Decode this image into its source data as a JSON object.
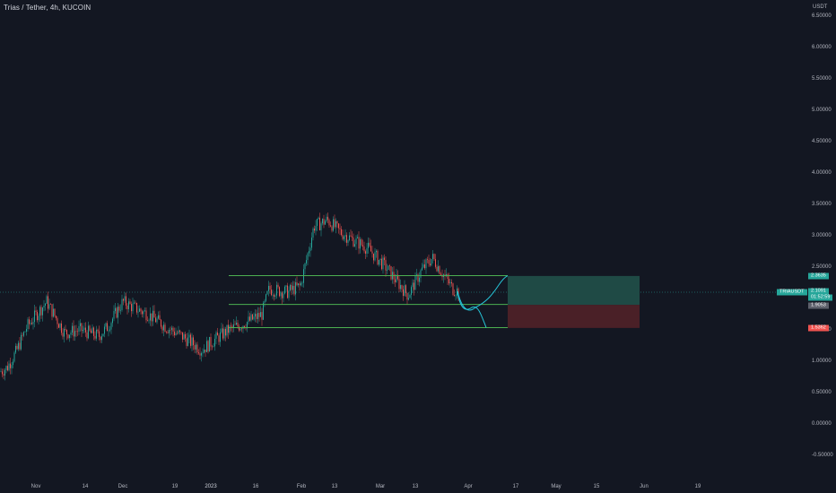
{
  "header": {
    "symbol_title": "Trias / Tether, 4h, KUCOIN"
  },
  "price_axis": {
    "currency": "USDT",
    "ticks": [
      "6.50000",
      "6.00000",
      "5.50000",
      "5.00000",
      "4.50000",
      "4.00000",
      "3.50000",
      "3.00000",
      "2.50000",
      "1.50000",
      "1.00000",
      "0.50000",
      "0.00000",
      "-0.50000"
    ]
  },
  "time_axis": {
    "ticks": [
      "Nov",
      "14",
      "Dec",
      "19",
      "2023",
      "16",
      "Feb",
      "13",
      "Mar",
      "13",
      "Apr",
      "17",
      "May",
      "15",
      "Jun",
      "19"
    ]
  },
  "price_tags": {
    "target": "2.3635",
    "last_price": "2.1091",
    "countdown": "01:52:59",
    "entry": "1.9053",
    "stop": "1.5362",
    "symbol": "TRIAUSDT"
  },
  "colors": {
    "background": "#131722",
    "bull": "#26a69a",
    "bear": "#ef5350",
    "level_line": "#4caf50",
    "projection": "#26c6da",
    "target_zone": "#1f4a45",
    "stop_zone": "#4a2027"
  },
  "chart_data": {
    "type": "candlestick",
    "timeframe": "4h",
    "y_axis": {
      "min": -0.5,
      "max": 6.5,
      "unit": "USDT",
      "grid": false
    },
    "path_points": [
      [
        "Nov",
        0.83
      ],
      [
        "Nov",
        0.9
      ],
      [
        "Nov",
        1.15
      ],
      [
        "Nov",
        1.55
      ],
      [
        "Nov",
        1.95
      ],
      [
        "14",
        1.7
      ],
      [
        "14",
        1.45
      ],
      [
        "14",
        1.5
      ],
      [
        "14",
        1.4
      ],
      [
        "Dec",
        1.55
      ],
      [
        "Dec",
        1.95
      ],
      [
        "Dec",
        1.85
      ],
      [
        "Dec",
        1.75
      ],
      [
        "19",
        1.55
      ],
      [
        "19",
        1.38
      ],
      [
        "2023",
        1.18
      ],
      [
        "2023",
        1.35
      ],
      [
        "2023",
        1.5
      ],
      [
        "16",
        1.62
      ],
      [
        "16",
        1.75
      ],
      [
        "Feb",
        2.15
      ],
      [
        "Feb",
        2.1
      ],
      [
        "Feb",
        2.2
      ],
      [
        "13",
        3.15
      ],
      [
        "13",
        3.25
      ],
      [
        "13",
        3.05
      ],
      [
        "Mar",
        2.8
      ],
      [
        "Mar",
        2.5
      ],
      [
        "13",
        2.05
      ],
      [
        "13",
        2.45
      ],
      [
        "13",
        2.65
      ],
      [
        "Apr",
        2.15
      ],
      [
        "Apr",
        2.11
      ]
    ],
    "levels": [
      2.3635,
      1.9053,
      1.5362
    ],
    "forecast_up": 2.3635,
    "forecast_down": 1.5362
  }
}
